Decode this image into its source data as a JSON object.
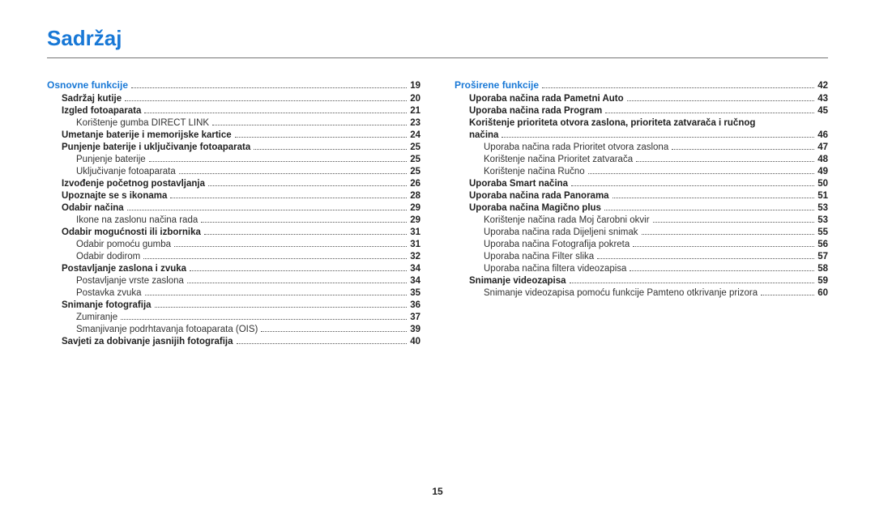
{
  "title": "Sadržaj",
  "page_number": "15",
  "colors": {
    "accent": "#1878d6",
    "text": "#222",
    "rule": "#777"
  },
  "fonts": {
    "title_size_pt": 26,
    "body_size_pt": 11.5,
    "section_size_pt": 12
  },
  "left": {
    "section": {
      "label": "Osnovne funkcije",
      "page": "19"
    },
    "items": [
      {
        "level": 1,
        "bold": true,
        "label": "Sadržaj kutije",
        "page": "20"
      },
      {
        "level": 1,
        "bold": true,
        "label": "Izgled fotoaparata",
        "page": "21"
      },
      {
        "level": 2,
        "bold": false,
        "label": "Korištenje gumba DIRECT LINK",
        "page": "23"
      },
      {
        "level": 1,
        "bold": true,
        "label": "Umetanje baterije i memorijske kartice",
        "page": "24"
      },
      {
        "level": 1,
        "bold": true,
        "label": "Punjenje baterije i uključivanje fotoaparata",
        "page": "25"
      },
      {
        "level": 2,
        "bold": false,
        "label": "Punjenje baterije",
        "page": "25"
      },
      {
        "level": 2,
        "bold": false,
        "label": "Uključivanje fotoaparata",
        "page": "25"
      },
      {
        "level": 1,
        "bold": true,
        "label": "Izvođenje početnog postavljanja",
        "page": "26"
      },
      {
        "level": 1,
        "bold": true,
        "label": "Upoznajte se s ikonama",
        "page": "28"
      },
      {
        "level": 1,
        "bold": true,
        "label": "Odabir načina",
        "page": "29"
      },
      {
        "level": 2,
        "bold": false,
        "label": "Ikone na zaslonu načina rada",
        "page": "29"
      },
      {
        "level": 1,
        "bold": true,
        "label": "Odabir mogućnosti ili izbornika",
        "page": "31"
      },
      {
        "level": 2,
        "bold": false,
        "label": "Odabir pomoću gumba",
        "page": "31"
      },
      {
        "level": 2,
        "bold": false,
        "label": "Odabir dodirom",
        "page": "32"
      },
      {
        "level": 1,
        "bold": true,
        "label": "Postavljanje zaslona i zvuka",
        "page": "34"
      },
      {
        "level": 2,
        "bold": false,
        "label": "Postavljanje vrste zaslona",
        "page": "34"
      },
      {
        "level": 2,
        "bold": false,
        "label": "Postavka zvuka",
        "page": "35"
      },
      {
        "level": 1,
        "bold": true,
        "label": "Snimanje fotografija",
        "page": "36"
      },
      {
        "level": 2,
        "bold": false,
        "label": "Zumiranje",
        "page": "37"
      },
      {
        "level": 2,
        "bold": false,
        "label": "Smanjivanje podrhtavanja fotoaparata (OIS)",
        "page": "39"
      },
      {
        "level": 1,
        "bold": true,
        "label": "Savjeti za dobivanje jasnijih fotografija",
        "page": "40"
      }
    ]
  },
  "right": {
    "section": {
      "label": "Proširene funkcije",
      "page": "42"
    },
    "items": [
      {
        "level": 1,
        "bold": true,
        "label": "Uporaba načina rada Pametni Auto",
        "page": "43"
      },
      {
        "level": 1,
        "bold": true,
        "label": "Uporaba načina rada Program",
        "page": "45"
      },
      {
        "level": 1,
        "bold": true,
        "label": "Korištenje prioriteta otvora zaslona, prioriteta zatvarača i ručnog",
        "wrap": true
      },
      {
        "level": 1,
        "bold": true,
        "label": "načina",
        "page": "46"
      },
      {
        "level": 2,
        "bold": false,
        "label": "Uporaba načina rada Prioritet otvora zaslona",
        "page": "47"
      },
      {
        "level": 2,
        "bold": false,
        "label": "Korištenje načina Prioritet zatvarača",
        "page": "48"
      },
      {
        "level": 2,
        "bold": false,
        "label": "Korištenje načina Ručno",
        "page": "49"
      },
      {
        "level": 1,
        "bold": true,
        "label": "Uporaba Smart načina",
        "page": "50"
      },
      {
        "level": 1,
        "bold": true,
        "label": "Uporaba načina rada Panorama",
        "page": "51"
      },
      {
        "level": 1,
        "bold": true,
        "label": "Uporaba načina Magično plus",
        "page": "53"
      },
      {
        "level": 2,
        "bold": false,
        "label": "Korištenje načina rada Moj čarobni okvir",
        "page": "53"
      },
      {
        "level": 2,
        "bold": false,
        "label": "Uporaba načina rada Dijeljeni snimak",
        "page": "55"
      },
      {
        "level": 2,
        "bold": false,
        "label": "Uporaba načina Fotografija pokreta",
        "page": "56"
      },
      {
        "level": 2,
        "bold": false,
        "label": "Uporaba načina Filter slika",
        "page": "57"
      },
      {
        "level": 2,
        "bold": false,
        "label": "Uporaba načina filtera videozapisa",
        "page": "58"
      },
      {
        "level": 1,
        "bold": true,
        "label": "Snimanje videozapisa",
        "page": "59"
      },
      {
        "level": 2,
        "bold": false,
        "label": "Snimanje videozapisa pomoću funkcije Pamteno otkrivanje prizora",
        "page": "60"
      }
    ]
  }
}
